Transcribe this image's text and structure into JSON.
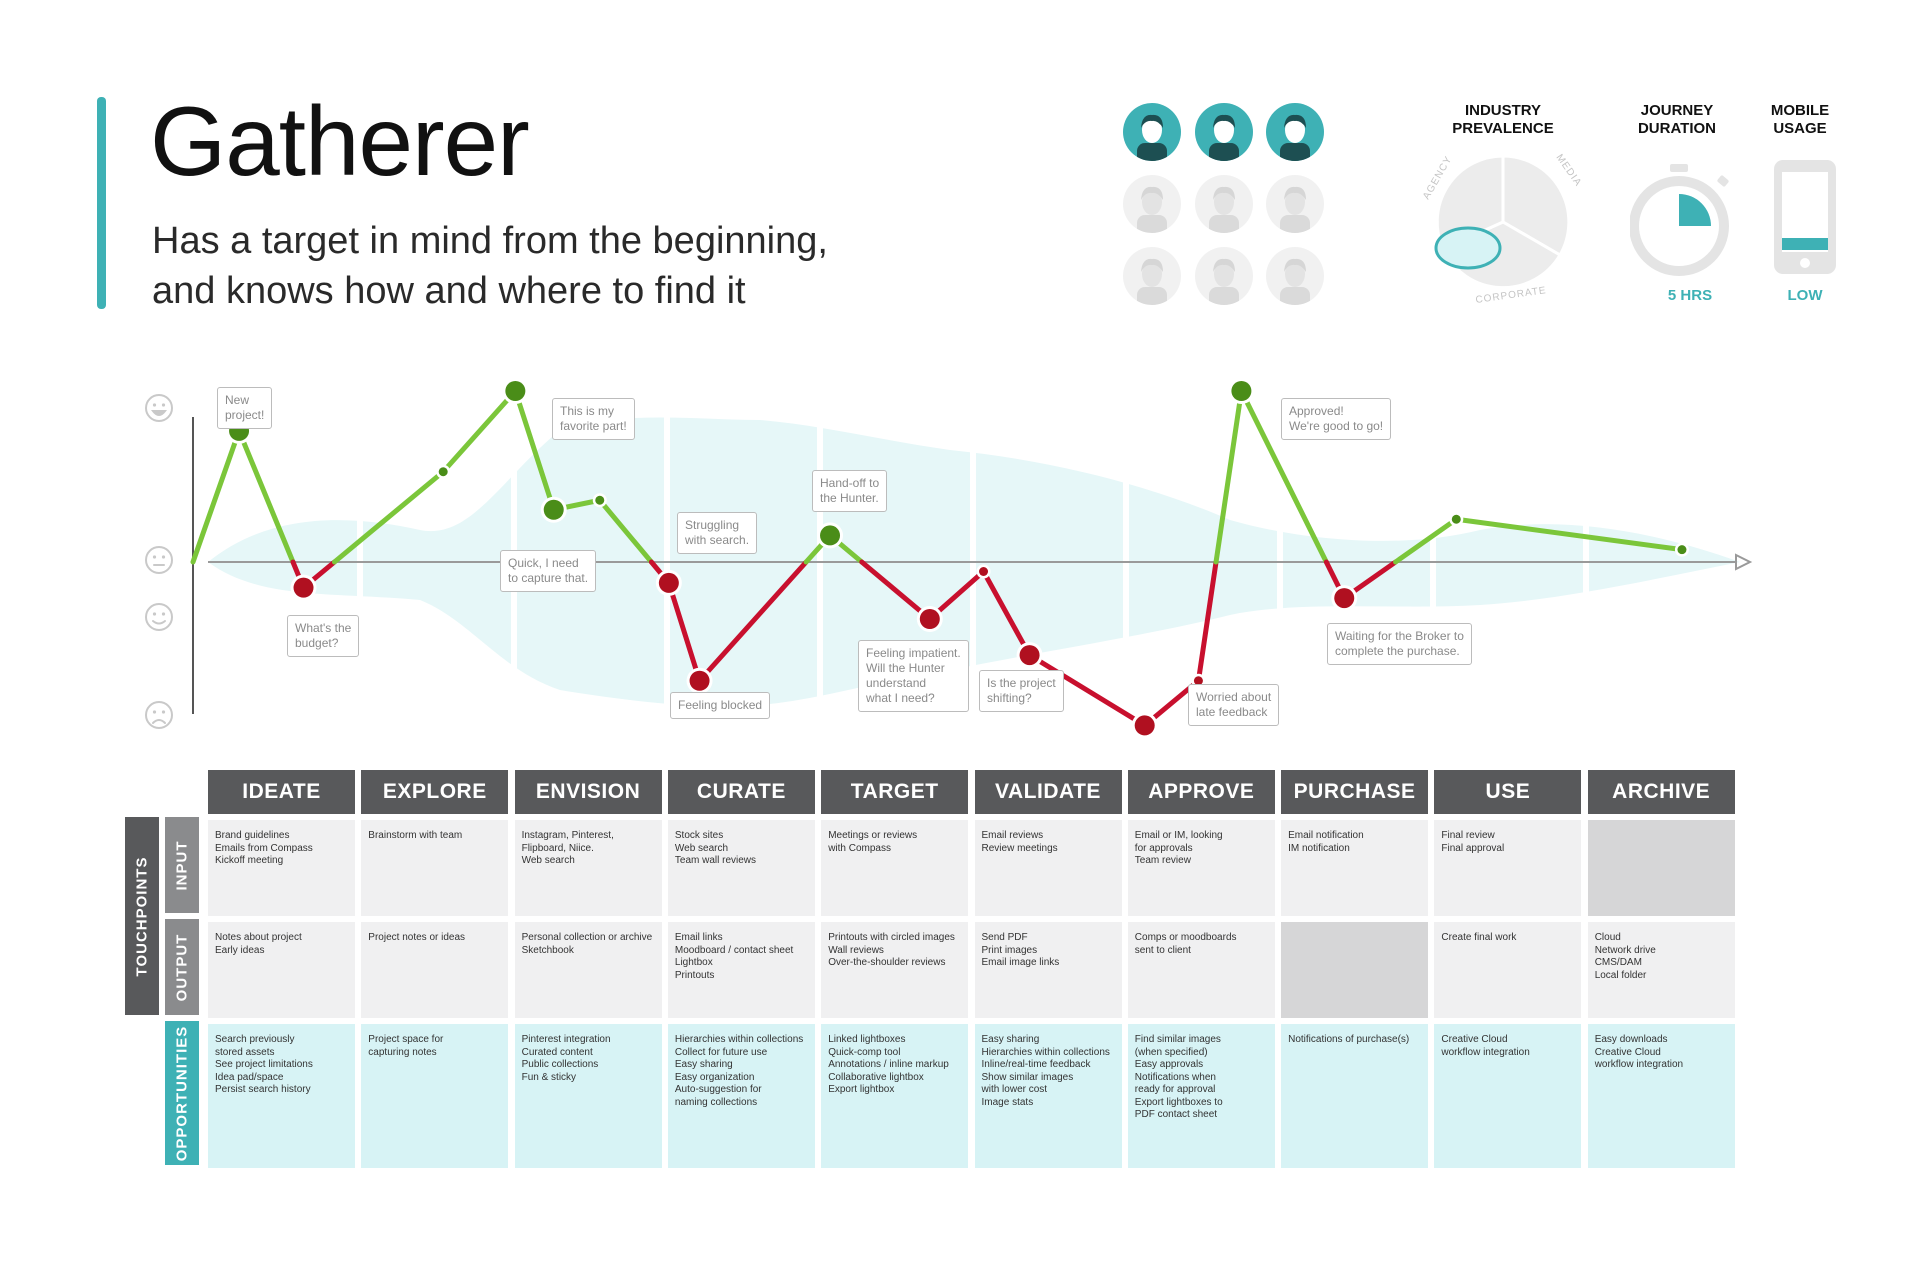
{
  "persona": {
    "title": "Gatherer",
    "subtitle_line1": "Has a target in mind from the beginning,",
    "subtitle_line2": "and knows how and where to find it"
  },
  "stats": {
    "industry_label_1": "INDUSTRY",
    "industry_label_2": "PREVALENCE",
    "pie_slices": [
      "AGENCY",
      "MEDIA",
      "CORPORATE"
    ],
    "duration_label_1": "JOURNEY",
    "duration_label_2": "DURATION",
    "duration_value": "5 HRS",
    "duration_fraction": 0.25,
    "mobile_label_1": "MOBILE",
    "mobile_label_2": "USAGE",
    "mobile_value": "LOW"
  },
  "colors": {
    "accent": "#3eb1b5",
    "positive": "#7bc63a",
    "positive_dot": "#4a8d18",
    "negative": "#c8102e",
    "negative_dot": "#b01020",
    "header": "#58595b"
  },
  "emotion_levels": [
    "happy",
    "neutral",
    "smile",
    "sad"
  ],
  "callouts": [
    "New\nproject!",
    "What's the\nbudget?",
    "This is my\nfavorite part!",
    "Quick, I need\nto capture that.",
    "Struggling\nwith search.",
    "Feeling blocked",
    "Hand-off to\nthe Hunter.",
    "Feeling impatient.\nWill the Hunter\nunderstand\nwhat I need?",
    "Is the project\nshifting?",
    "Worried about\nlate feedback",
    "Approved!\nWe're good to go!",
    "Waiting for the Broker to\ncomplete the purchase."
  ],
  "row_labels": {
    "touchpoints": "TOUCHPOINTS",
    "input": "INPUT",
    "output": "OUTPUT",
    "opportunities": "OPPORTUNITIES"
  },
  "stages": [
    {
      "name": "IDEATE",
      "input": "Brand guidelines\nEmails from Compass\nKickoff meeting",
      "output": "Notes about project\nEarly ideas",
      "opportunities": "Search previously\nstored assets\nSee project limitations\nIdea pad/space\nPersist search history"
    },
    {
      "name": "EXPLORE",
      "input": "Brainstorm with team",
      "output": "Project notes or ideas",
      "opportunities": "Project space for\ncapturing notes"
    },
    {
      "name": "ENVISION",
      "input": "Instagram, Pinterest,\nFlipboard, Niice.\nWeb search",
      "output": "Personal collection or archive\nSketchbook",
      "opportunities": "Pinterest integration\nCurated content\nPublic collections\nFun & sticky"
    },
    {
      "name": "CURATE",
      "input": "Stock sites\nWeb search\nTeam wall reviews",
      "output": "Email links\nMoodboard / contact sheet\nLightbox\nPrintouts",
      "opportunities": "Hierarchies within collections\nCollect for future use\nEasy sharing\nEasy organization\nAuto-suggestion for\nnaming collections"
    },
    {
      "name": "TARGET",
      "input": "Meetings or reviews\nwith Compass",
      "output": "Printouts with circled images\nWall reviews\nOver-the-shoulder reviews",
      "opportunities": "Linked lightboxes\nQuick-comp tool\nAnnotations / inline markup\nCollaborative lightbox\nExport lightbox"
    },
    {
      "name": "VALIDATE",
      "input": "Email reviews\nReview meetings",
      "output": "Send PDF\nPrint images\nEmail image links",
      "opportunities": "Easy sharing\nHierarchies within collections\nInline/real-time feedback\nShow similar images\nwith lower cost\nImage stats"
    },
    {
      "name": "APPROVE",
      "input": "Email or IM, looking\nfor approvals\nTeam review",
      "output": "Comps or moodboards\nsent to client",
      "opportunities": "Find similar images\n(when specified)\nEasy approvals\nNotifications when\nready for approval\nExport lightboxes to\nPDF contact sheet"
    },
    {
      "name": "PURCHASE",
      "input": "Email notification\nIM notification",
      "output": "",
      "opportunities": "Notifications of purchase(s)"
    },
    {
      "name": "USE",
      "input": "Final review\nFinal approval",
      "output": "Create final work",
      "opportunities": "Creative Cloud\nworkflow integration"
    },
    {
      "name": "ARCHIVE",
      "input": "",
      "output": "Cloud\nNetwork drive\nCMS/DAM\nLocal folder",
      "opportunities": "Easy downloads\nCreative Cloud\nworkflow integration"
    }
  ],
  "chart_data": {
    "type": "line",
    "y_scale": "emotion (+2 very happy … -2 very unhappy, 0 neutral)",
    "ylim": [
      -2,
      2
    ],
    "points": [
      {
        "x": 0.0,
        "y": 0.0,
        "dot": false
      },
      {
        "x": 0.3,
        "y": 1.38,
        "dot": true
      },
      {
        "x": 0.72,
        "y": -0.27,
        "dot": true
      },
      {
        "x": 1.63,
        "y": 0.95,
        "dot": false
      },
      {
        "x": 2.1,
        "y": 1.8,
        "dot": true
      },
      {
        "x": 2.35,
        "y": 0.55,
        "dot": true
      },
      {
        "x": 2.65,
        "y": 0.65,
        "dot": false
      },
      {
        "x": 3.1,
        "y": -0.22,
        "dot": true
      },
      {
        "x": 3.3,
        "y": -1.25,
        "dot": true
      },
      {
        "x": 4.15,
        "y": 0.28,
        "dot": true
      },
      {
        "x": 4.8,
        "y": -0.6,
        "dot": true
      },
      {
        "x": 5.15,
        "y": -0.1,
        "dot": false
      },
      {
        "x": 5.45,
        "y": -0.98,
        "dot": true
      },
      {
        "x": 6.2,
        "y": -1.72,
        "dot": true
      },
      {
        "x": 6.55,
        "y": -1.25,
        "dot": false
      },
      {
        "x": 6.83,
        "y": 1.8,
        "dot": true
      },
      {
        "x": 7.5,
        "y": -0.38,
        "dot": true
      },
      {
        "x": 8.23,
        "y": 0.45,
        "dot": false
      },
      {
        "x": 9.7,
        "y": 0.13,
        "dot": false
      }
    ]
  }
}
